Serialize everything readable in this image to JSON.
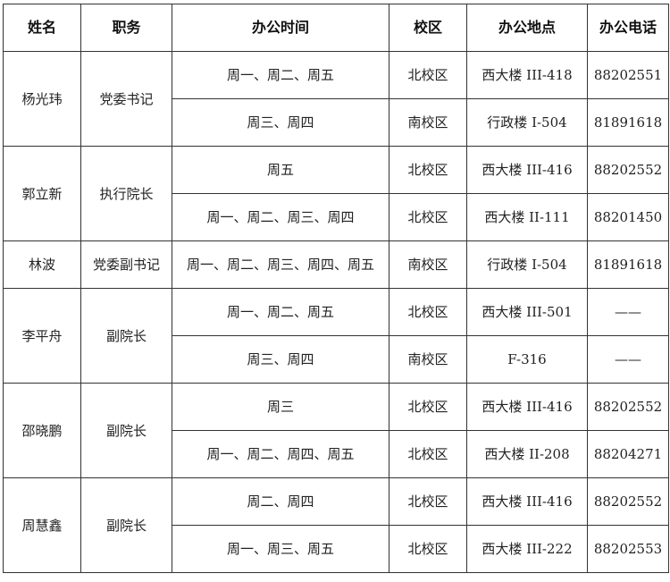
{
  "headers": [
    "姓名",
    "职务",
    "办公时间",
    "校区",
    "办公地点",
    "办公电话"
  ],
  "people": [
    {
      "name": "杨光玮",
      "title": "党委书记",
      "slots": [
        {
          "time": "周一、周二、周五",
          "campus": "北校区",
          "location": "西大楼 III-418",
          "phone": "88202551"
        },
        {
          "time": "周三、周四",
          "campus": "南校区",
          "location": "行政楼 I-504",
          "phone": "81891618"
        }
      ]
    },
    {
      "name": "郭立新",
      "title": "执行院长",
      "slots": [
        {
          "time": "周五",
          "campus": "北校区",
          "location": "西大楼 III-416",
          "phone": "88202552"
        },
        {
          "time": "周一、周二、周三、周四",
          "campus": "北校区",
          "location": "西大楼 II-111",
          "phone": "88201450"
        }
      ]
    },
    {
      "name": "林波",
      "title": "党委副书记",
      "slots": [
        {
          "time": "周一、周二、周三、周四、周五",
          "campus": "南校区",
          "location": "行政楼 I-504",
          "phone": "81891618"
        }
      ]
    },
    {
      "name": "李平舟",
      "title": "副院长",
      "slots": [
        {
          "time": "周一、周二、周五",
          "campus": "北校区",
          "location": "西大楼 III-501",
          "phone": "——"
        },
        {
          "time": "周三、周四",
          "campus": "南校区",
          "location": "F-316",
          "phone": "——"
        }
      ]
    },
    {
      "name": "邵晓鹏",
      "title": "副院长",
      "slots": [
        {
          "time": "周三",
          "campus": "北校区",
          "location": "西大楼 III-416",
          "phone": "88202552"
        },
        {
          "time": "周一、周二、周四、周五",
          "campus": "北校区",
          "location": "西大楼 II-208",
          "phone": "88204271"
        }
      ]
    },
    {
      "name": "周慧鑫",
      "title": "副院长",
      "slots": [
        {
          "time": "周二、周四",
          "campus": "北校区",
          "location": "西大楼 III-416",
          "phone": "88202552"
        },
        {
          "time": "周一、周三、周五",
          "campus": "北校区",
          "location": "西大楼 III-222",
          "phone": "88202553"
        }
      ]
    }
  ]
}
